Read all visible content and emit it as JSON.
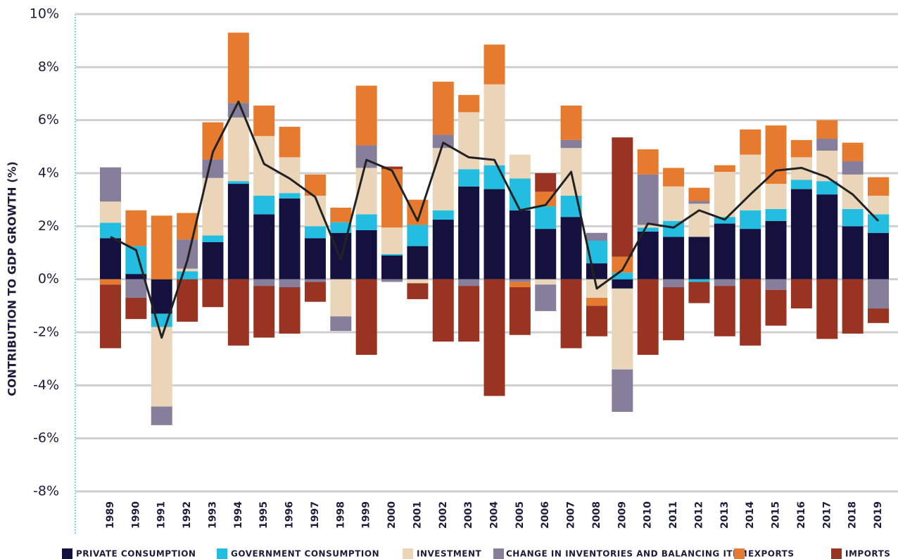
{
  "chart_data": {
    "type": "stacked-bar",
    "y_label": "CONTRIBUTION TO GDP GROWTH (%)",
    "categories": [
      "1989",
      "1990",
      "1991",
      "1992",
      "1993",
      "1994",
      "1995",
      "1996",
      "1997",
      "1998",
      "1999",
      "2000",
      "2001",
      "2002",
      "2003",
      "2004",
      "2005",
      "2006",
      "2007",
      "2008",
      "2009",
      "2010",
      "2011",
      "2012",
      "2013",
      "2014",
      "2015",
      "2016",
      "2017",
      "2018",
      "2019"
    ],
    "series": [
      {
        "name": "PRIVATE CONSUMPTION",
        "color": "#15113f",
        "values": [
          1.55,
          0.2,
          -1.3,
          0,
          1.4,
          3.6,
          2.45,
          3.05,
          1.55,
          1.75,
          1.85,
          0.9,
          1.25,
          2.25,
          3.5,
          3.4,
          2.6,
          1.9,
          2.35,
          0.6,
          -0.35,
          1.8,
          1.6,
          1.6,
          2.1,
          1.9,
          2.2,
          3.4,
          3.2,
          2.0,
          1.75
        ]
      },
      {
        "name": "GOVERNMENT CONSUMPTION",
        "color": "#22bde0",
        "values": [
          0.58,
          1.05,
          -0.5,
          0.3,
          0.25,
          0.1,
          0.7,
          0.2,
          0.45,
          0.4,
          0.6,
          0.05,
          0.8,
          0.35,
          0.65,
          0.9,
          1.2,
          0.85,
          0.8,
          0.85,
          0.25,
          0.15,
          0.6,
          -0.1,
          0.25,
          0.7,
          0.45,
          0.35,
          0.5,
          0.65,
          0.7
        ]
      },
      {
        "name": "INVESTMENT",
        "color": "#ead5b8",
        "values": [
          0.8,
          0,
          -3.0,
          0.1,
          2.17,
          2.4,
          2.25,
          1.35,
          1.15,
          -1.4,
          1.75,
          1.0,
          -0.15,
          2.35,
          2.15,
          3.05,
          0.9,
          -0.2,
          1.8,
          -0.7,
          -3.05,
          0.1,
          1.3,
          1.25,
          1.7,
          2.1,
          0.95,
          0.85,
          1.15,
          1.3,
          0.7
        ]
      },
      {
        "name": "CHANGE IN INVENTORIES AND BALANCING ITEM",
        "color": "#857f9c",
        "values": [
          1.29,
          -0.7,
          -0.7,
          1.1,
          0.7,
          0.55,
          -0.25,
          -0.3,
          -0.1,
          -0.55,
          0.85,
          -0.1,
          0,
          0.5,
          -0.25,
          0,
          -0.1,
          -1.0,
          0.3,
          0.3,
          -1.6,
          1.9,
          -0.3,
          0.1,
          -0.25,
          0,
          -0.4,
          0,
          0.45,
          0.5,
          -1.1
        ]
      },
      {
        "name": "EXPORTS",
        "color": "#e67b30",
        "values": [
          -0.2,
          1.35,
          2.4,
          1.0,
          1.4,
          2.65,
          1.15,
          1.15,
          0.8,
          0.55,
          2.25,
          2.2,
          0.95,
          2.0,
          0.65,
          1.5,
          -0.2,
          0.55,
          1.3,
          -0.3,
          0.6,
          0.95,
          0.7,
          0.5,
          0.25,
          0.95,
          2.2,
          0.65,
          0.7,
          0.7,
          0.7
        ]
      },
      {
        "name": "IMPORTS",
        "color": "#9a3422",
        "values": [
          -2.4,
          -0.8,
          0,
          -1.6,
          -1.05,
          -2.5,
          -1.95,
          -1.75,
          -0.75,
          0,
          -2.85,
          0.1,
          -0.6,
          -2.35,
          -2.1,
          -4.4,
          -1.8,
          0.7,
          -2.6,
          -1.15,
          4.5,
          -2.85,
          -2.0,
          -0.8,
          -1.9,
          -2.5,
          -1.35,
          -1.1,
          -2.25,
          -2.05,
          -0.55
        ]
      }
    ],
    "line": {
      "color": "#222222",
      "values": [
        1.6,
        1.1,
        -2.2,
        0.7,
        4.8,
        6.7,
        4.35,
        3.8,
        3.1,
        0.75,
        4.5,
        4.1,
        2.2,
        5.15,
        4.6,
        4.5,
        2.6,
        2.8,
        4.05,
        -0.35,
        0.35,
        2.1,
        1.95,
        2.6,
        2.25,
        3.2,
        4.1,
        4.2,
        3.85,
        3.2,
        2.2
      ]
    },
    "ylim": [
      -8,
      10
    ],
    "yticks": [
      {
        "value": -8,
        "label": "-8%"
      },
      {
        "value": -6,
        "label": "-6%"
      },
      {
        "value": -4,
        "label": "-4%"
      },
      {
        "value": -2,
        "label": "-2%"
      },
      {
        "value": 0,
        "label": "0%"
      },
      {
        "value": 2,
        "label": "2%"
      },
      {
        "value": 4,
        "label": "4%"
      },
      {
        "value": 6,
        "label": "6%"
      },
      {
        "value": 8,
        "label": "8%"
      },
      {
        "value": 10,
        "label": "10%"
      }
    ],
    "grid": true
  }
}
